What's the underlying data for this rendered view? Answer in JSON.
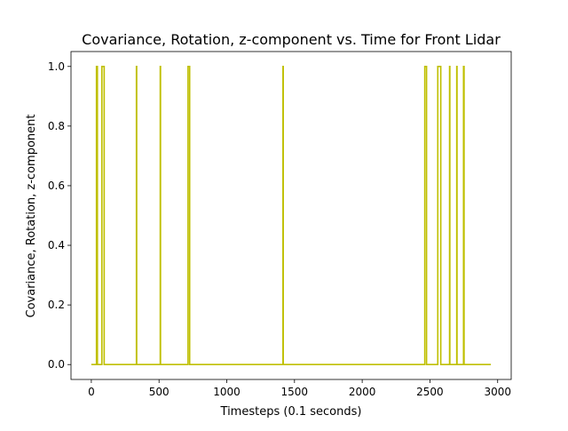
{
  "chart_data": {
    "type": "line",
    "title": "Covariance, Rotation, z-component vs. Time for Front Lidar",
    "xlabel": "Timesteps (0.1 seconds)",
    "ylabel": "Covariance, Rotation, z-component",
    "xlim": [
      -150,
      3100
    ],
    "ylim": [
      -0.05,
      1.05
    ],
    "xticks": [
      0,
      500,
      1000,
      1500,
      2000,
      2500,
      3000
    ],
    "xtick_labels": [
      "0",
      "500",
      "1000",
      "1500",
      "2000",
      "2500",
      "3000"
    ],
    "yticks": [
      0.0,
      0.2,
      0.4,
      0.6,
      0.8,
      1.0
    ],
    "ytick_labels": [
      "0.0",
      "0.2",
      "0.4",
      "0.6",
      "0.8",
      "1.0"
    ],
    "grid": false,
    "legend": false,
    "series": [
      {
        "color": "#bfbf00",
        "x_range": [
          0,
          2950
        ],
        "baseline": 0.0,
        "spikes": [
          {
            "start": 38,
            "end": 45,
            "value": 1.0
          },
          {
            "start": 78,
            "end": 95,
            "value": 1.0
          },
          {
            "start": 333,
            "end": 335,
            "value": 1.0
          },
          {
            "start": 509,
            "end": 511,
            "value": 1.0
          },
          {
            "start": 714,
            "end": 726,
            "value": 1.0
          },
          {
            "start": 1415,
            "end": 1417,
            "value": 1.0
          },
          {
            "start": 2462,
            "end": 2475,
            "value": 1.0
          },
          {
            "start": 2558,
            "end": 2580,
            "value": 1.0
          },
          {
            "start": 2645,
            "end": 2647,
            "value": 1.0
          },
          {
            "start": 2698,
            "end": 2700,
            "value": 1.0
          },
          {
            "start": 2748,
            "end": 2752,
            "value": 1.0
          }
        ]
      }
    ]
  }
}
